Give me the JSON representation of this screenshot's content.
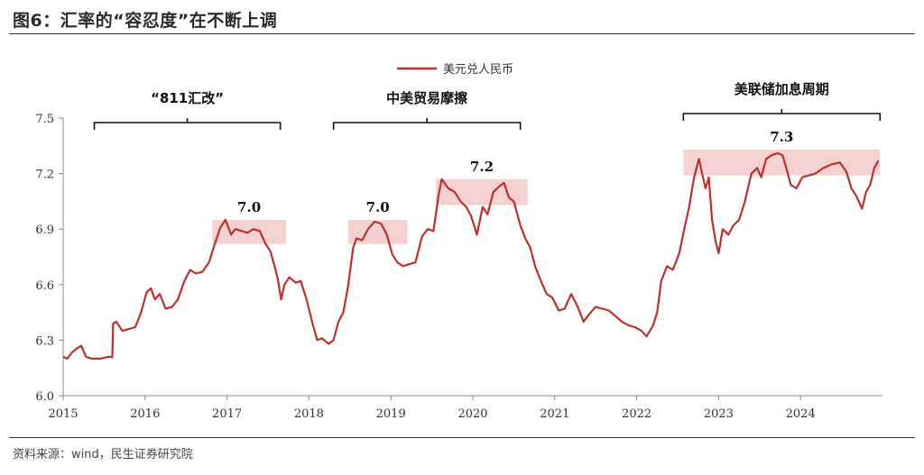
{
  "header": {
    "title": "图6：汇率的“容忍度”在不断上调"
  },
  "footer": {
    "source": "资料来源：wind，民生证券研究院"
  },
  "chart_data": {
    "type": "line",
    "series": [
      {
        "name": "美元兑人民币",
        "color": "#c0302b",
        "points": [
          [
            2015.0,
            6.21
          ],
          [
            2015.05,
            6.2
          ],
          [
            2015.1,
            6.23
          ],
          [
            2015.15,
            6.25
          ],
          [
            2015.22,
            6.27
          ],
          [
            2015.28,
            6.21
          ],
          [
            2015.35,
            6.2
          ],
          [
            2015.45,
            6.2
          ],
          [
            2015.55,
            6.21
          ],
          [
            2015.6,
            6.21
          ],
          [
            2015.61,
            6.39
          ],
          [
            2015.65,
            6.4
          ],
          [
            2015.72,
            6.35
          ],
          [
            2015.8,
            6.36
          ],
          [
            2015.88,
            6.37
          ],
          [
            2015.95,
            6.45
          ],
          [
            2016.02,
            6.56
          ],
          [
            2016.07,
            6.58
          ],
          [
            2016.12,
            6.52
          ],
          [
            2016.18,
            6.55
          ],
          [
            2016.25,
            6.47
          ],
          [
            2016.33,
            6.48
          ],
          [
            2016.4,
            6.52
          ],
          [
            2016.48,
            6.62
          ],
          [
            2016.55,
            6.68
          ],
          [
            2016.62,
            6.66
          ],
          [
            2016.7,
            6.67
          ],
          [
            2016.78,
            6.72
          ],
          [
            2016.85,
            6.82
          ],
          [
            2016.92,
            6.91
          ],
          [
            2016.98,
            6.95
          ],
          [
            2017.05,
            6.87
          ],
          [
            2017.1,
            6.9
          ],
          [
            2017.18,
            6.89
          ],
          [
            2017.25,
            6.88
          ],
          [
            2017.32,
            6.9
          ],
          [
            2017.4,
            6.89
          ],
          [
            2017.47,
            6.82
          ],
          [
            2017.53,
            6.78
          ],
          [
            2017.58,
            6.7
          ],
          [
            2017.62,
            6.63
          ],
          [
            2017.66,
            6.52
          ],
          [
            2017.7,
            6.6
          ],
          [
            2017.76,
            6.64
          ],
          [
            2017.84,
            6.61
          ],
          [
            2017.9,
            6.62
          ],
          [
            2017.97,
            6.52
          ],
          [
            2018.05,
            6.38
          ],
          [
            2018.1,
            6.3
          ],
          [
            2018.16,
            6.31
          ],
          [
            2018.24,
            6.28
          ],
          [
            2018.3,
            6.3
          ],
          [
            2018.36,
            6.4
          ],
          [
            2018.42,
            6.45
          ],
          [
            2018.48,
            6.6
          ],
          [
            2018.54,
            6.8
          ],
          [
            2018.58,
            6.85
          ],
          [
            2018.65,
            6.84
          ],
          [
            2018.72,
            6.9
          ],
          [
            2018.8,
            6.94
          ],
          [
            2018.88,
            6.93
          ],
          [
            2018.95,
            6.87
          ],
          [
            2019.02,
            6.76
          ],
          [
            2019.08,
            6.72
          ],
          [
            2019.15,
            6.7
          ],
          [
            2019.22,
            6.71
          ],
          [
            2019.3,
            6.72
          ],
          [
            2019.38,
            6.86
          ],
          [
            2019.45,
            6.9
          ],
          [
            2019.52,
            6.89
          ],
          [
            2019.58,
            7.08
          ],
          [
            2019.62,
            7.17
          ],
          [
            2019.7,
            7.12
          ],
          [
            2019.78,
            7.1
          ],
          [
            2019.85,
            7.05
          ],
          [
            2019.92,
            7.02
          ],
          [
            2019.98,
            6.97
          ],
          [
            2020.05,
            6.87
          ],
          [
            2020.12,
            7.02
          ],
          [
            2020.18,
            6.98
          ],
          [
            2020.25,
            7.1
          ],
          [
            2020.32,
            7.13
          ],
          [
            2020.38,
            7.15
          ],
          [
            2020.44,
            7.07
          ],
          [
            2020.5,
            7.05
          ],
          [
            2020.58,
            6.92
          ],
          [
            2020.64,
            6.85
          ],
          [
            2020.7,
            6.8
          ],
          [
            2020.76,
            6.7
          ],
          [
            2020.83,
            6.62
          ],
          [
            2020.9,
            6.55
          ],
          [
            2020.97,
            6.53
          ],
          [
            2021.05,
            6.46
          ],
          [
            2021.12,
            6.47
          ],
          [
            2021.2,
            6.55
          ],
          [
            2021.28,
            6.48
          ],
          [
            2021.35,
            6.4
          ],
          [
            2021.42,
            6.44
          ],
          [
            2021.5,
            6.48
          ],
          [
            2021.58,
            6.47
          ],
          [
            2021.66,
            6.46
          ],
          [
            2021.74,
            6.43
          ],
          [
            2021.82,
            6.4
          ],
          [
            2021.9,
            6.38
          ],
          [
            2021.98,
            6.37
          ],
          [
            2022.06,
            6.35
          ],
          [
            2022.12,
            6.32
          ],
          [
            2022.2,
            6.38
          ],
          [
            2022.25,
            6.45
          ],
          [
            2022.3,
            6.62
          ],
          [
            2022.37,
            6.7
          ],
          [
            2022.44,
            6.68
          ],
          [
            2022.52,
            6.77
          ],
          [
            2022.58,
            6.9
          ],
          [
            2022.64,
            7.02
          ],
          [
            2022.7,
            7.18
          ],
          [
            2022.76,
            7.28
          ],
          [
            2022.8,
            7.2
          ],
          [
            2022.84,
            7.12
          ],
          [
            2022.88,
            7.18
          ],
          [
            2022.92,
            6.95
          ],
          [
            2022.96,
            6.84
          ],
          [
            2023.0,
            6.77
          ],
          [
            2023.05,
            6.9
          ],
          [
            2023.12,
            6.87
          ],
          [
            2023.18,
            6.92
          ],
          [
            2023.25,
            6.95
          ],
          [
            2023.32,
            7.05
          ],
          [
            2023.4,
            7.2
          ],
          [
            2023.47,
            7.23
          ],
          [
            2023.52,
            7.18
          ],
          [
            2023.58,
            7.28
          ],
          [
            2023.65,
            7.3
          ],
          [
            2023.72,
            7.31
          ],
          [
            2023.78,
            7.3
          ],
          [
            2023.82,
            7.24
          ],
          [
            2023.88,
            7.14
          ],
          [
            2023.95,
            7.12
          ],
          [
            2024.02,
            7.18
          ],
          [
            2024.1,
            7.19
          ],
          [
            2024.18,
            7.2
          ],
          [
            2024.28,
            7.23
          ],
          [
            2024.38,
            7.25
          ],
          [
            2024.48,
            7.26
          ],
          [
            2024.56,
            7.21
          ],
          [
            2024.62,
            7.12
          ],
          [
            2024.68,
            7.08
          ],
          [
            2024.72,
            7.04
          ],
          [
            2024.75,
            7.01
          ],
          [
            2024.8,
            7.1
          ],
          [
            2024.85,
            7.14
          ],
          [
            2024.9,
            7.23
          ],
          [
            2024.95,
            7.27
          ]
        ]
      }
    ],
    "xlim": [
      2015,
      2025
    ],
    "ylim": [
      6.0,
      7.5
    ],
    "xticks": [
      2015,
      2016,
      2017,
      2018,
      2019,
      2020,
      2021,
      2022,
      2023,
      2024
    ],
    "xtick_labels": [
      "2015",
      "2016",
      "2017",
      "2018",
      "2019",
      "2020",
      "2021",
      "2022",
      "2023",
      "2024"
    ],
    "yticks": [
      6.0,
      6.3,
      6.6,
      6.9,
      7.2,
      7.5
    ],
    "ytick_labels": [
      "6.0",
      "6.3",
      "6.6",
      "6.9",
      "7.2",
      "7.5"
    ],
    "legend": {
      "placement": "top-center"
    },
    "grid": false,
    "periods": [
      {
        "label": "“811汇改”",
        "start": 2015.38,
        "end": 2017.65
      },
      {
        "label": "中美贸易摩擦",
        "start": 2018.3,
        "end": 2020.58
      },
      {
        "label": "美联储加息周期",
        "start": 2022.57,
        "end": 2024.97
      }
    ],
    "bands": [
      {
        "label": "7.0",
        "start": 2016.82,
        "end": 2017.72,
        "ymin": 6.82,
        "ymax": 6.95,
        "color": "#f5d2d2"
      },
      {
        "label": "7.0",
        "start": 2018.48,
        "end": 2019.2,
        "ymin": 6.82,
        "ymax": 6.95,
        "color": "#f5d2d2"
      },
      {
        "label": "7.2",
        "start": 2019.55,
        "end": 2020.67,
        "ymin": 7.03,
        "ymax": 7.17,
        "color": "#f5d2d2"
      },
      {
        "label": "7.3",
        "start": 2022.57,
        "end": 2024.97,
        "ymin": 7.19,
        "ymax": 7.33,
        "color": "#f5d2d2"
      }
    ]
  }
}
